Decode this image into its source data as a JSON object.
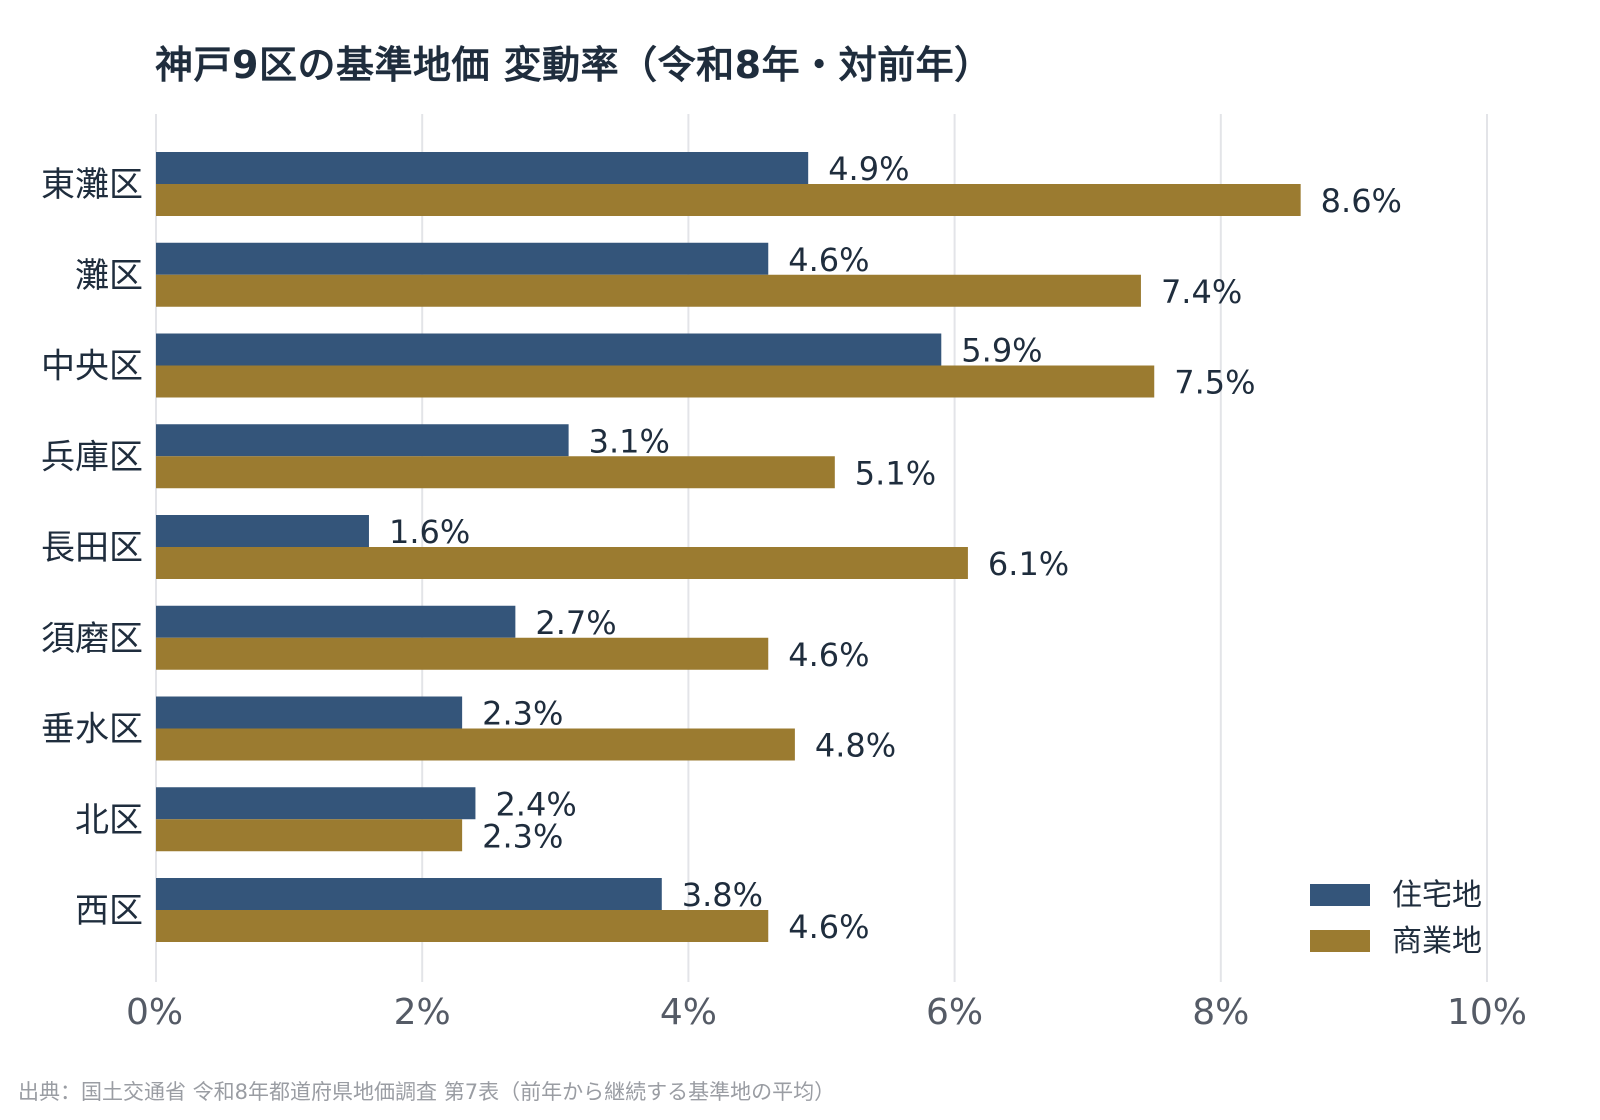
{
  "title": "神戸9区の基準地価 変動率（令和8年・対前年）",
  "source": "出典：国土交通省 令和8年都道府県地価調査 第7表（前年から継続する基準地の平均）",
  "colors": {
    "residential": "#34557a",
    "commercial": "#9b7b30"
  },
  "chart_data": {
    "type": "bar",
    "orientation": "horizontal",
    "title": "神戸9区の基準地価 変動率（令和8年・対前年）",
    "xlabel": "",
    "ylabel": "",
    "xlim": [
      0,
      10
    ],
    "x_ticks": [
      "0%",
      "2%",
      "4%",
      "6%",
      "8%",
      "10%"
    ],
    "grid": true,
    "legend_position": "bottom-right",
    "categories": [
      "東灘区",
      "灘区",
      "中央区",
      "兵庫区",
      "長田区",
      "須磨区",
      "垂水区",
      "北区",
      "西区"
    ],
    "series": [
      {
        "name": "住宅地",
        "values": [
          4.9,
          4.6,
          5.9,
          3.1,
          1.6,
          2.7,
          2.3,
          2.4,
          3.8
        ],
        "labels": [
          "4.9%",
          "4.6%",
          "5.9%",
          "3.1%",
          "1.6%",
          "2.7%",
          "2.3%",
          "2.4%",
          "3.8%"
        ]
      },
      {
        "name": "商業地",
        "values": [
          8.6,
          7.4,
          7.5,
          5.1,
          6.1,
          4.6,
          4.8,
          2.3,
          4.6
        ],
        "labels": [
          "8.6%",
          "7.4%",
          "7.5%",
          "5.1%",
          "6.1%",
          "4.6%",
          "4.8%",
          "2.3%",
          "4.6%"
        ]
      }
    ]
  }
}
